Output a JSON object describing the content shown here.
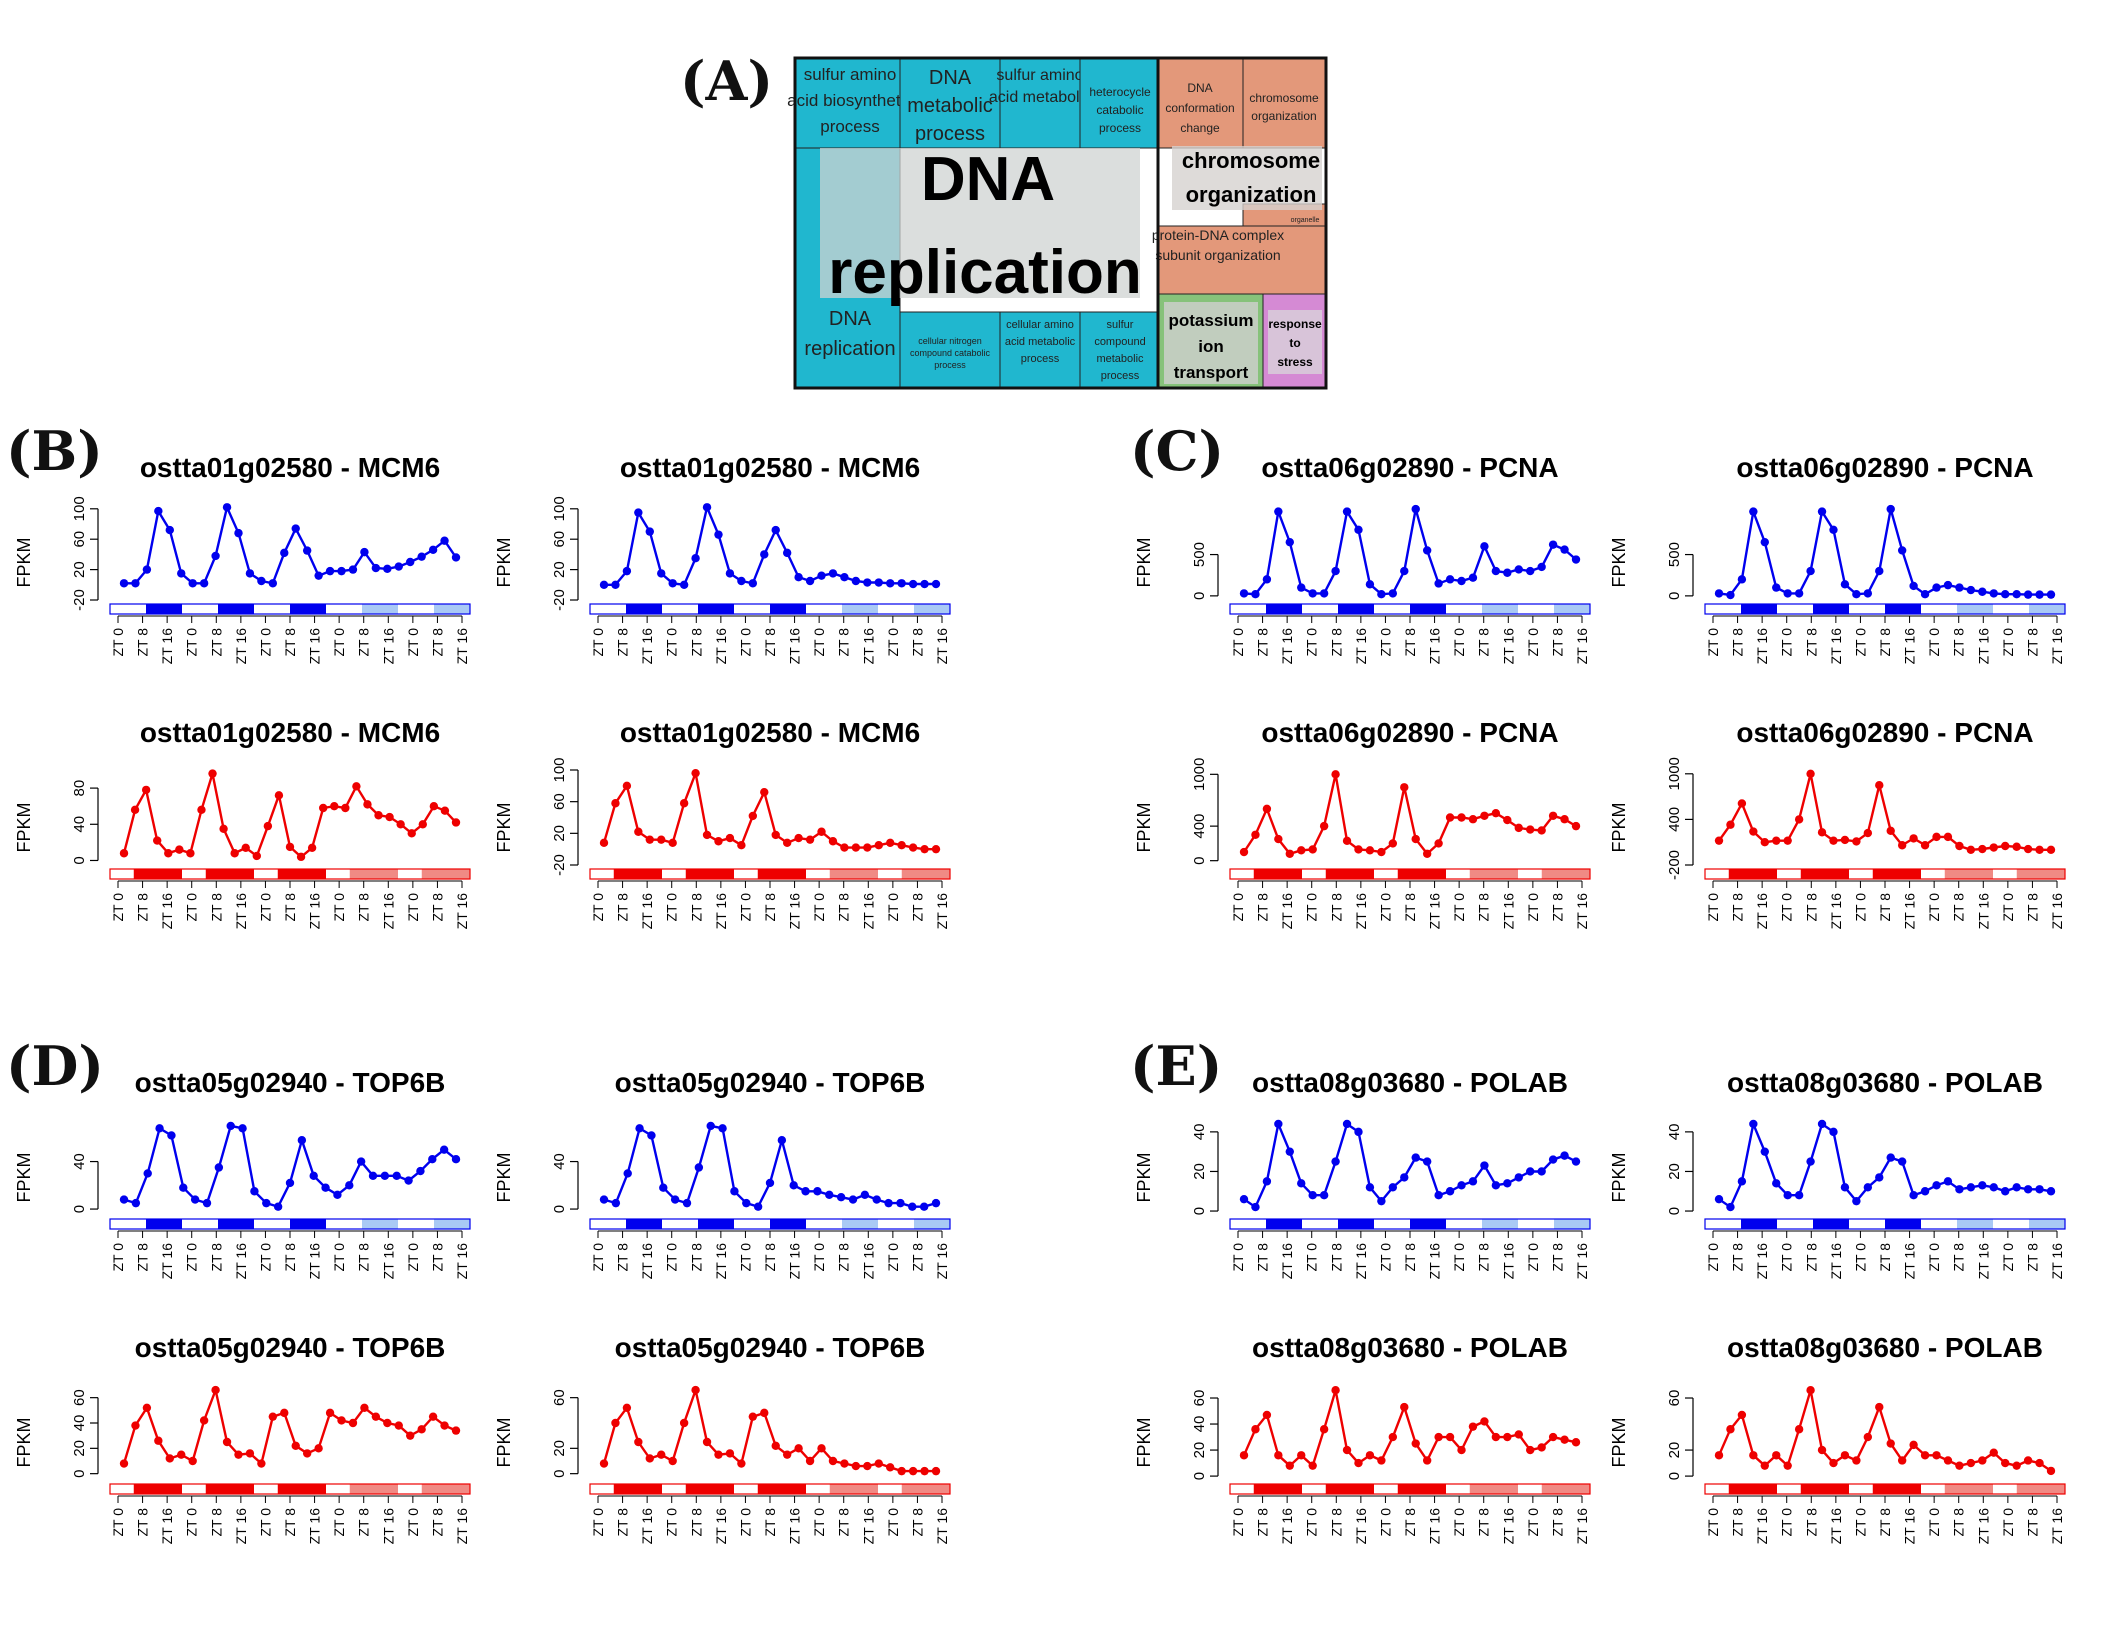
{
  "panel_labels": {
    "a": "(A)",
    "b": "(B)",
    "c": "(C)",
    "d": "(D)",
    "e": "(E)"
  },
  "treemap": {
    "cells": [
      {
        "text": "sulfur amino acid biosynthetic process",
        "color": "#20b7cf"
      },
      {
        "text": "DNA metabolic process",
        "color": "#20b7cf"
      },
      {
        "text": "sulfur amino acid metabolic",
        "color": "#20b7cf"
      },
      {
        "text": "heterocycle catabolic process",
        "color": "#20b7cf"
      },
      {
        "text": "DNA replication",
        "color": "#20b7cf"
      },
      {
        "text": "cellular nitrogen compound catabolic process",
        "color": "#20b7cf"
      },
      {
        "text": "cellular amino acid metabolic process",
        "color": "#20b7cf"
      },
      {
        "text": "sulfur compound metabolic process",
        "color": "#20b7cf"
      },
      {
        "text": "DNA conformation change",
        "color": "#e3987a"
      },
      {
        "text": "chromosome organization",
        "color": "#e3987a"
      },
      {
        "text": "organelle organization",
        "color": "#e3987a"
      },
      {
        "text": "protein-DNA complex subunit organization",
        "color": "#e3987a"
      },
      {
        "text": "potassium ion transport",
        "color": "#86c27a"
      },
      {
        "text": "response to stress",
        "color": "#d58ad4"
      }
    ],
    "big_labels": [
      "DNA replication",
      "chromosome organization",
      "potassium ion transport",
      "response to stress"
    ]
  },
  "chart_data": [
    {
      "type": "line",
      "panel": "B",
      "title": "ostta01g02580 - MCM6",
      "ylabel": "FPKM",
      "color": "#0000ee",
      "ylim": [
        -20,
        105
      ],
      "yticks": [
        -20,
        20,
        60,
        100
      ],
      "xticks": [
        "ZT 0",
        "ZT 8",
        "ZT 16",
        "ZT 0",
        "ZT 8",
        "ZT 16",
        "ZT 0",
        "ZT 8",
        "ZT 16",
        "ZT 0",
        "ZT 8",
        "ZT 16",
        "ZT 0",
        "ZT 8",
        "ZT 16"
      ],
      "values": [
        2,
        2,
        20,
        97,
        72,
        15,
        2,
        2,
        38,
        102,
        68,
        15,
        5,
        2,
        42,
        74,
        45,
        12,
        18,
        18,
        20,
        43,
        22,
        21,
        24,
        30,
        37,
        46,
        58,
        36
      ]
    },
    {
      "type": "line",
      "panel": "B",
      "title": "ostta01g02580 - MCM6",
      "ylabel": "FPKM",
      "color": "#0000ee",
      "ylim": [
        -20,
        105
      ],
      "yticks": [
        -20,
        20,
        60,
        100
      ],
      "xticks": [
        "ZT 0",
        "ZT 8",
        "ZT 16",
        "ZT 0",
        "ZT 8",
        "ZT 16",
        "ZT 0",
        "ZT 8",
        "ZT 16",
        "ZT 0",
        "ZT 8",
        "ZT 16",
        "ZT 0",
        "ZT 8",
        "ZT 16"
      ],
      "values": [
        0,
        0,
        18,
        95,
        70,
        15,
        2,
        0,
        35,
        102,
        66,
        15,
        5,
        2,
        40,
        72,
        42,
        10,
        5,
        12,
        15,
        10,
        5,
        3,
        3,
        2,
        2,
        1,
        1,
        1
      ]
    },
    {
      "type": "line",
      "panel": "B",
      "title": "ostta01g02580 - MCM6",
      "ylabel": "FPKM",
      "color": "#ee0000",
      "ylim": [
        -5,
        100
      ],
      "yticks": [
        0,
        40,
        80
      ],
      "xticks": [
        "ZT 0",
        "ZT 8",
        "ZT 16",
        "ZT 0",
        "ZT 8",
        "ZT 16",
        "ZT 0",
        "ZT 8",
        "ZT 16",
        "ZT 0",
        "ZT 8",
        "ZT 16",
        "ZT 0",
        "ZT 8",
        "ZT 16"
      ],
      "values": [
        8,
        56,
        78,
        22,
        8,
        12,
        8,
        56,
        96,
        35,
        8,
        14,
        5,
        38,
        72,
        15,
        4,
        14,
        58,
        60,
        58,
        82,
        62,
        50,
        48,
        40,
        30,
        40,
        60,
        55,
        42
      ]
    },
    {
      "type": "line",
      "panel": "B",
      "title": "ostta01g02580 - MCM6",
      "ylabel": "FPKM",
      "color": "#ee0000",
      "ylim": [
        -20,
        100
      ],
      "yticks": [
        -20,
        20,
        60,
        100
      ],
      "xticks": [
        "ZT 0",
        "ZT 8",
        "ZT 16",
        "ZT 0",
        "ZT 8",
        "ZT 16",
        "ZT 0",
        "ZT 8",
        "ZT 16",
        "ZT 0",
        "ZT 8",
        "ZT 16",
        "ZT 0",
        "ZT 8",
        "ZT 16"
      ],
      "values": [
        8,
        58,
        80,
        22,
        12,
        12,
        8,
        58,
        96,
        18,
        10,
        14,
        5,
        42,
        72,
        18,
        8,
        14,
        12,
        22,
        10,
        2,
        2,
        2,
        5,
        8,
        5,
        2,
        0,
        0
      ]
    },
    {
      "type": "line",
      "panel": "C",
      "title": "ostta06g02890 - PCNA",
      "ylabel": "FPKM",
      "color": "#0000ee",
      "ylim": [
        -50,
        1100
      ],
      "yticks": [
        0,
        500
      ],
      "xticks": [
        "ZT 0",
        "ZT 8",
        "ZT 16",
        "ZT 0",
        "ZT 8",
        "ZT 16",
        "ZT 0",
        "ZT 8",
        "ZT 16",
        "ZT 0",
        "ZT 8",
        "ZT 16",
        "ZT 0",
        "ZT 8",
        "ZT 16"
      ],
      "values": [
        30,
        20,
        200,
        1020,
        650,
        100,
        30,
        30,
        300,
        1020,
        800,
        140,
        20,
        30,
        300,
        1050,
        550,
        150,
        200,
        180,
        220,
        600,
        300,
        280,
        320,
        300,
        350,
        620,
        560,
        440
      ]
    },
    {
      "type": "line",
      "panel": "C",
      "title": "ostta06g02890 - PCNA",
      "ylabel": "FPKM",
      "color": "#0000ee",
      "ylim": [
        -50,
        1100
      ],
      "yticks": [
        0,
        500
      ],
      "xticks": [
        "ZT 0",
        "ZT 8",
        "ZT 16",
        "ZT 0",
        "ZT 8",
        "ZT 16",
        "ZT 0",
        "ZT 8",
        "ZT 16",
        "ZT 0",
        "ZT 8",
        "ZT 16",
        "ZT 0",
        "ZT 8",
        "ZT 16"
      ],
      "values": [
        30,
        10,
        200,
        1020,
        650,
        100,
        30,
        30,
        300,
        1020,
        800,
        140,
        20,
        30,
        300,
        1050,
        550,
        120,
        20,
        100,
        130,
        100,
        70,
        50,
        30,
        20,
        20,
        15,
        15,
        15
      ]
    },
    {
      "type": "line",
      "panel": "C",
      "title": "ostta06g02890 - PCNA",
      "ylabel": "FPKM",
      "color": "#ee0000",
      "ylim": [
        -50,
        1050
      ],
      "yticks": [
        0,
        400,
        1000
      ],
      "xticks": [
        "ZT 0",
        "ZT 8",
        "ZT 16",
        "ZT 0",
        "ZT 8",
        "ZT 16",
        "ZT 0",
        "ZT 8",
        "ZT 16",
        "ZT 0",
        "ZT 8",
        "ZT 16",
        "ZT 0",
        "ZT 8",
        "ZT 16"
      ],
      "values": [
        100,
        300,
        600,
        250,
        80,
        120,
        130,
        400,
        1000,
        230,
        130,
        120,
        100,
        200,
        850,
        250,
        80,
        200,
        500,
        500,
        480,
        520,
        550,
        470,
        380,
        360,
        350,
        520,
        480,
        400
      ]
    },
    {
      "type": "line",
      "panel": "C",
      "title": "ostta06g02890 - PCNA",
      "ylabel": "FPKM",
      "color": "#ee0000",
      "ylim": [
        -200,
        1050
      ],
      "yticks": [
        -200,
        400,
        1000
      ],
      "xticks": [
        "ZT 0",
        "ZT 8",
        "ZT 16",
        "ZT 0",
        "ZT 8",
        "ZT 16",
        "ZT 0",
        "ZT 8",
        "ZT 16",
        "ZT 0",
        "ZT 8",
        "ZT 16",
        "ZT 0",
        "ZT 8",
        "ZT 16"
      ],
      "values": [
        120,
        330,
        610,
        240,
        100,
        120,
        120,
        400,
        1000,
        230,
        120,
        130,
        110,
        220,
        850,
        250,
        60,
        150,
        60,
        170,
        170,
        50,
        0,
        10,
        30,
        50,
        40,
        10,
        0,
        0
      ]
    },
    {
      "type": "line",
      "panel": "D",
      "title": "ostta05g02940 - TOP6B",
      "ylabel": "FPKM",
      "color": "#0000ee",
      "ylim": [
        -5,
        75
      ],
      "yticks": [
        0,
        40
      ],
      "xticks": [
        "ZT 0",
        "ZT 8",
        "ZT 16",
        "ZT 0",
        "ZT 8",
        "ZT 16",
        "ZT 0",
        "ZT 8",
        "ZT 16",
        "ZT 0",
        "ZT 8",
        "ZT 16",
        "ZT 0",
        "ZT 8",
        "ZT 16"
      ],
      "values": [
        8,
        5,
        30,
        68,
        62,
        18,
        8,
        5,
        35,
        70,
        68,
        15,
        5,
        2,
        22,
        58,
        28,
        18,
        12,
        20,
        40,
        28,
        28,
        28,
        24,
        32,
        42,
        50,
        42
      ]
    },
    {
      "type": "line",
      "panel": "D",
      "title": "ostta05g02940 - TOP6B",
      "ylabel": "FPKM",
      "color": "#0000ee",
      "ylim": [
        -5,
        75
      ],
      "yticks": [
        0,
        40
      ],
      "xticks": [
        "ZT 0",
        "ZT 8",
        "ZT 16",
        "ZT 0",
        "ZT 8",
        "ZT 16",
        "ZT 0",
        "ZT 8",
        "ZT 16",
        "ZT 0",
        "ZT 8",
        "ZT 16",
        "ZT 0",
        "ZT 8",
        "ZT 16"
      ],
      "values": [
        8,
        5,
        30,
        68,
        62,
        18,
        8,
        5,
        35,
        70,
        68,
        15,
        5,
        2,
        22,
        58,
        20,
        15,
        15,
        12,
        10,
        8,
        12,
        8,
        5,
        5,
        2,
        2,
        5
      ]
    },
    {
      "type": "line",
      "panel": "D",
      "title": "ostta05g02940 - TOP6B",
      "ylabel": "FPKM",
      "color": "#ee0000",
      "ylim": [
        -5,
        70
      ],
      "yticks": [
        0,
        20,
        40,
        60
      ],
      "xticks": [
        "ZT 0",
        "ZT 8",
        "ZT 16",
        "ZT 0",
        "ZT 8",
        "ZT 16",
        "ZT 0",
        "ZT 8",
        "ZT 16",
        "ZT 0",
        "ZT 8",
        "ZT 16",
        "ZT 0",
        "ZT 8",
        "ZT 16"
      ],
      "values": [
        8,
        38,
        52,
        26,
        12,
        15,
        10,
        42,
        66,
        25,
        15,
        16,
        8,
        45,
        48,
        22,
        16,
        20,
        48,
        42,
        40,
        52,
        45,
        40,
        38,
        30,
        35,
        45,
        38,
        34
      ]
    },
    {
      "type": "line",
      "panel": "D",
      "title": "ostta05g02940 - TOP6B",
      "ylabel": "FPKM",
      "color": "#ee0000",
      "ylim": [
        -5,
        70
      ],
      "yticks": [
        0,
        20,
        60
      ],
      "xticks": [
        "ZT 0",
        "ZT 8",
        "ZT 16",
        "ZT 0",
        "ZT 8",
        "ZT 16",
        "ZT 0",
        "ZT 8",
        "ZT 16",
        "ZT 0",
        "ZT 8",
        "ZT 16",
        "ZT 0",
        "ZT 8",
        "ZT 16"
      ],
      "values": [
        8,
        40,
        52,
        25,
        12,
        15,
        10,
        40,
        66,
        25,
        15,
        16,
        8,
        45,
        48,
        22,
        15,
        20,
        10,
        20,
        10,
        8,
        6,
        6,
        8,
        5,
        2,
        2,
        2,
        2
      ]
    },
    {
      "type": "line",
      "panel": "E",
      "title": "ostta08g03680 - POLAB",
      "ylabel": "FPKM",
      "color": "#0000ee",
      "ylim": [
        -2,
        46
      ],
      "yticks": [
        0,
        20,
        40
      ],
      "xticks": [
        "ZT 0",
        "ZT 8",
        "ZT 16",
        "ZT 0",
        "ZT 8",
        "ZT 16",
        "ZT 0",
        "ZT 8",
        "ZT 16",
        "ZT 0",
        "ZT 8",
        "ZT 16",
        "ZT 0",
        "ZT 8",
        "ZT 16"
      ],
      "values": [
        6,
        2,
        15,
        44,
        30,
        14,
        8,
        8,
        25,
        44,
        40,
        12,
        5,
        12,
        17,
        27,
        25,
        8,
        10,
        13,
        15,
        23,
        13,
        14,
        17,
        20,
        20,
        26,
        28,
        25
      ]
    },
    {
      "type": "line",
      "panel": "E",
      "title": "ostta08g03680 - POLAB",
      "ylabel": "FPKM",
      "color": "#0000ee",
      "ylim": [
        -2,
        46
      ],
      "yticks": [
        0,
        20,
        40
      ],
      "xticks": [
        "ZT 0",
        "ZT 8",
        "ZT 16",
        "ZT 0",
        "ZT 8",
        "ZT 16",
        "ZT 0",
        "ZT 8",
        "ZT 16",
        "ZT 0",
        "ZT 8",
        "ZT 16",
        "ZT 0",
        "ZT 8",
        "ZT 16"
      ],
      "values": [
        6,
        2,
        15,
        44,
        30,
        14,
        8,
        8,
        25,
        44,
        40,
        12,
        5,
        12,
        17,
        27,
        25,
        8,
        10,
        13,
        15,
        11,
        12,
        13,
        12,
        10,
        12,
        11,
        11,
        10
      ]
    },
    {
      "type": "line",
      "panel": "E",
      "title": "ostta08g03680 - POLAB",
      "ylabel": "FPKM",
      "color": "#ee0000",
      "ylim": [
        -3,
        70
      ],
      "yticks": [
        0,
        20,
        40,
        60
      ],
      "xticks": [
        "ZT 0",
        "ZT 8",
        "ZT 16",
        "ZT 0",
        "ZT 8",
        "ZT 16",
        "ZT 0",
        "ZT 8",
        "ZT 16",
        "ZT 0",
        "ZT 8",
        "ZT 16",
        "ZT 0",
        "ZT 8",
        "ZT 16"
      ],
      "values": [
        16,
        36,
        47,
        16,
        8,
        16,
        8,
        36,
        66,
        20,
        10,
        16,
        12,
        30,
        53,
        25,
        12,
        30,
        30,
        20,
        38,
        42,
        30,
        30,
        32,
        20,
        22,
        30,
        28,
        26
      ]
    },
    {
      "type": "line",
      "panel": "E",
      "title": "ostta08g03680 - POLAB",
      "ylabel": "FPKM",
      "color": "#ee0000",
      "ylim": [
        -3,
        70
      ],
      "yticks": [
        0,
        20,
        60
      ],
      "xticks": [
        "ZT 0",
        "ZT 8",
        "ZT 16",
        "ZT 0",
        "ZT 8",
        "ZT 16",
        "ZT 0",
        "ZT 8",
        "ZT 16",
        "ZT 0",
        "ZT 8",
        "ZT 16",
        "ZT 0",
        "ZT 8",
        "ZT 16"
      ],
      "values": [
        16,
        36,
        47,
        16,
        8,
        16,
        8,
        36,
        66,
        20,
        10,
        16,
        12,
        30,
        53,
        25,
        12,
        24,
        16,
        16,
        12,
        8,
        10,
        12,
        18,
        10,
        8,
        12,
        10,
        4
      ]
    }
  ]
}
